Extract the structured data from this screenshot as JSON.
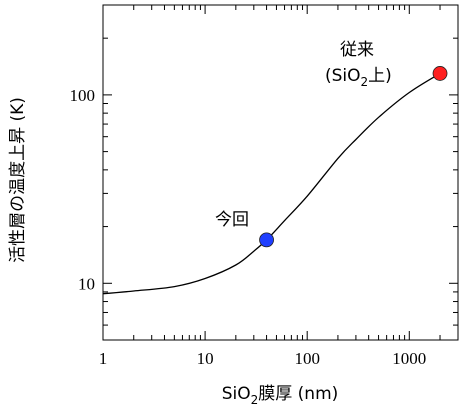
{
  "chart_data": {
    "type": "line",
    "xscale": "log",
    "yscale": "log",
    "xlim": [
      1,
      3000
    ],
    "ylim": [
      5,
      300
    ],
    "grid": false,
    "x_ticks": [
      1,
      10,
      100,
      1000
    ],
    "x_tick_labels": [
      "1",
      "10",
      "100",
      "1000"
    ],
    "y_ticks": [
      10,
      100
    ],
    "y_tick_labels": [
      "10",
      "100"
    ],
    "xlabel": {
      "main": "SiO",
      "sub": "2",
      "rest": "膜厚 (nm)"
    },
    "ylabel": "活性層の温度上昇 (K)",
    "series": [
      {
        "color": "#000000",
        "x": [
          1,
          2,
          5,
          10,
          20,
          30,
          40,
          60,
          100,
          200,
          300,
          500,
          1000,
          2000
        ],
        "y": [
          8.8,
          9.1,
          9.6,
          10.6,
          12.5,
          14.8,
          17,
          21.5,
          29,
          46,
          58,
          76,
          103,
          130
        ]
      }
    ],
    "points": [
      {
        "label": "今回",
        "x": 40,
        "y": 17,
        "color": "#1f3fff"
      },
      {
        "label_line1": "従来",
        "label_line2": {
          "pre": "(SiO",
          "sub": "2",
          "post": "上)"
        },
        "x": 2000,
        "y": 130,
        "color": "#ff2020"
      }
    ]
  }
}
